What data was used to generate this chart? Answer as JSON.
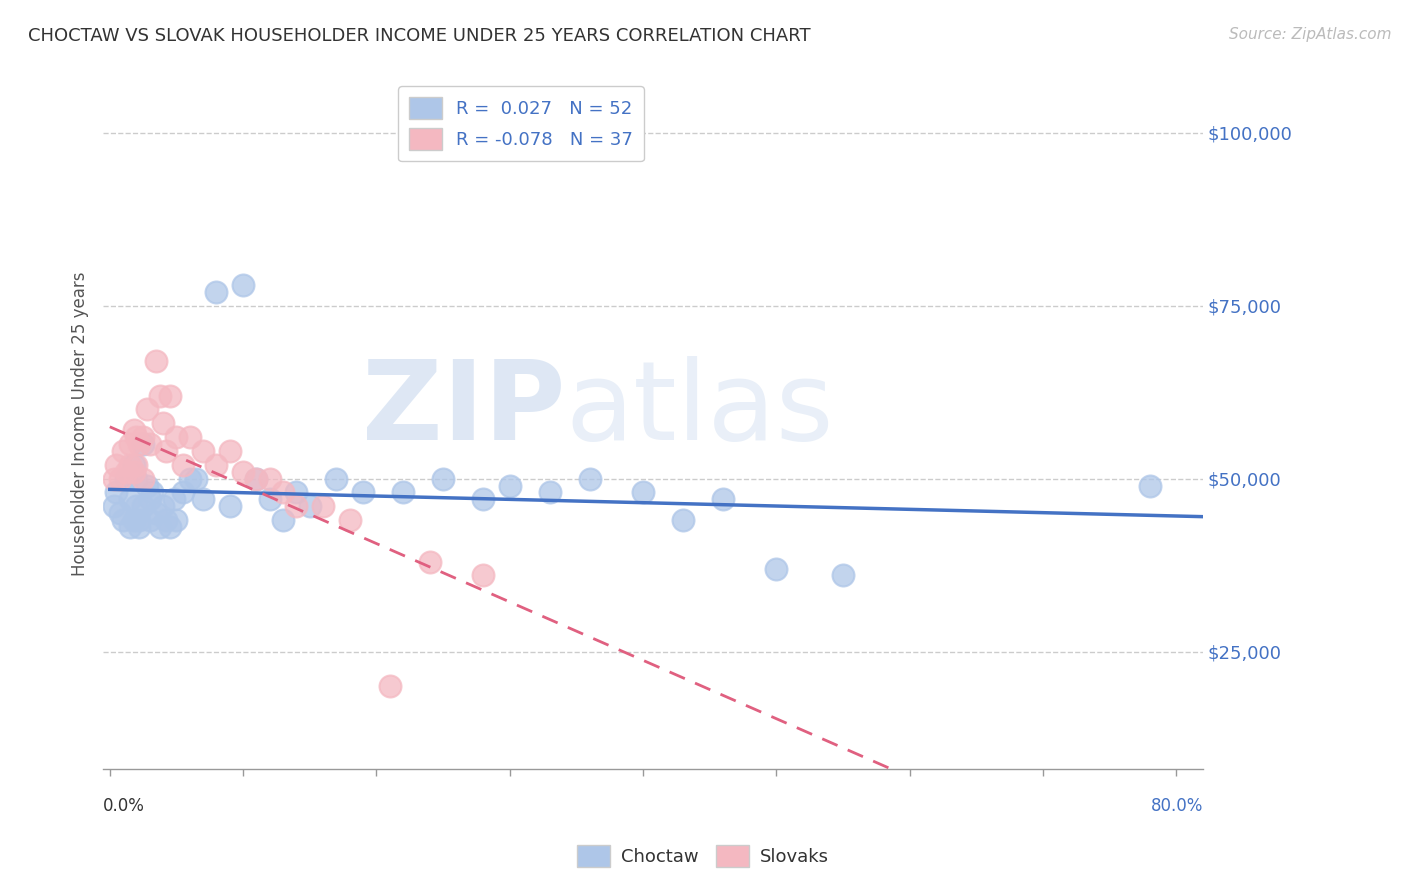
{
  "title": "CHOCTAW VS SLOVAK HOUSEHOLDER INCOME UNDER 25 YEARS CORRELATION CHART",
  "source": "Source: ZipAtlas.com",
  "ylabel": "Householder Income Under 25 years",
  "y_ticks": [
    25000,
    50000,
    75000,
    100000
  ],
  "y_tick_labels": [
    "$25,000",
    "$50,000",
    "$75,000",
    "$100,000"
  ],
  "x_min": -0.005,
  "x_max": 0.82,
  "y_min": 8000,
  "y_max": 108000,
  "choctaw_color": "#aec6e8",
  "slovak_color": "#f4b8c1",
  "choctaw_line_color": "#4472c4",
  "slovak_line_color": "#e06080",
  "choctaw_x": [
    0.003,
    0.005,
    0.008,
    0.01,
    0.012,
    0.015,
    0.015,
    0.018,
    0.018,
    0.02,
    0.02,
    0.022,
    0.022,
    0.025,
    0.025,
    0.028,
    0.03,
    0.03,
    0.032,
    0.035,
    0.038,
    0.04,
    0.042,
    0.045,
    0.048,
    0.05,
    0.055,
    0.06,
    0.065,
    0.07,
    0.08,
    0.09,
    0.1,
    0.11,
    0.12,
    0.13,
    0.14,
    0.15,
    0.17,
    0.19,
    0.22,
    0.25,
    0.28,
    0.3,
    0.33,
    0.36,
    0.4,
    0.43,
    0.46,
    0.5,
    0.55,
    0.78
  ],
  "choctaw_y": [
    46000,
    48000,
    45000,
    44000,
    50000,
    47000,
    43000,
    52000,
    44000,
    50000,
    46000,
    44000,
    43000,
    55000,
    46000,
    49000,
    47000,
    44000,
    48000,
    45000,
    43000,
    46000,
    44000,
    43000,
    47000,
    44000,
    48000,
    50000,
    50000,
    47000,
    77000,
    46000,
    78000,
    50000,
    47000,
    44000,
    48000,
    46000,
    50000,
    48000,
    48000,
    50000,
    47000,
    49000,
    48000,
    50000,
    48000,
    44000,
    47000,
    37000,
    36000,
    49000
  ],
  "slovak_x": [
    0.003,
    0.005,
    0.008,
    0.01,
    0.012,
    0.015,
    0.015,
    0.018,
    0.018,
    0.02,
    0.02,
    0.022,
    0.025,
    0.025,
    0.028,
    0.03,
    0.035,
    0.038,
    0.04,
    0.042,
    0.045,
    0.05,
    0.055,
    0.06,
    0.07,
    0.08,
    0.09,
    0.1,
    0.11,
    0.12,
    0.13,
    0.14,
    0.16,
    0.18,
    0.21,
    0.24,
    0.28
  ],
  "slovak_y": [
    50000,
    52000,
    50000,
    54000,
    51000,
    55000,
    52000,
    57000,
    51000,
    56000,
    52000,
    55000,
    56000,
    50000,
    60000,
    55000,
    67000,
    62000,
    58000,
    54000,
    62000,
    56000,
    52000,
    56000,
    54000,
    52000,
    54000,
    51000,
    50000,
    50000,
    48000,
    46000,
    46000,
    44000,
    20000,
    38000,
    36000
  ],
  "x_axis_ticks": [
    0.0,
    0.1,
    0.2,
    0.3,
    0.4,
    0.5,
    0.6,
    0.7,
    0.8
  ]
}
